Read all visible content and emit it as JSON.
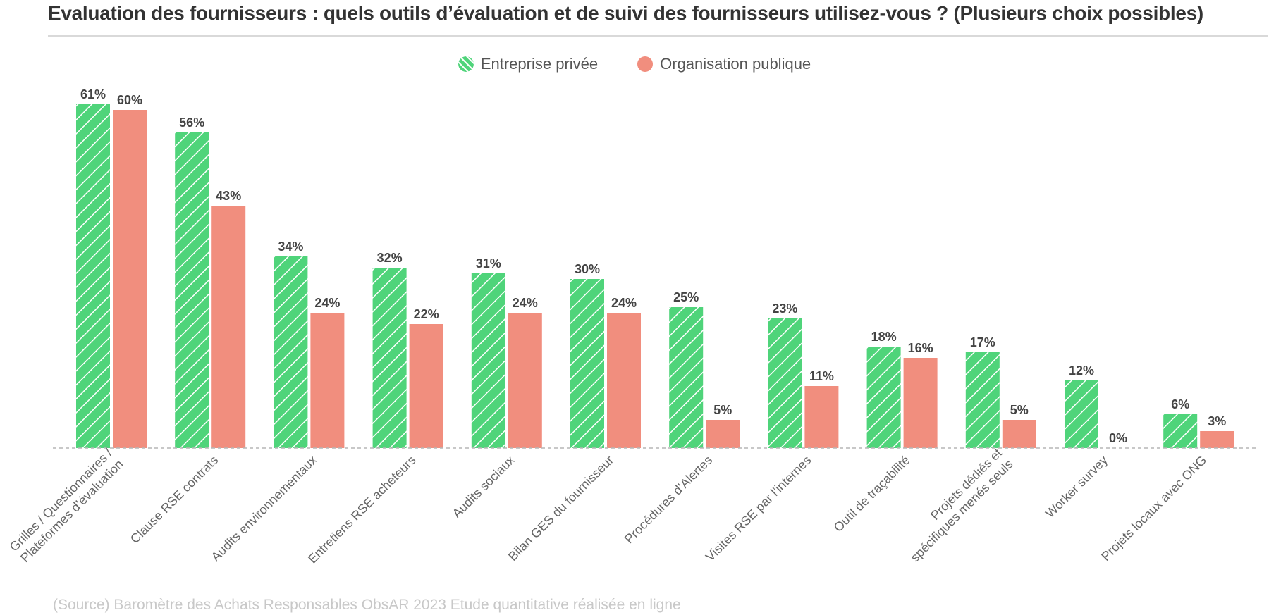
{
  "title": "Evaluation des fournisseurs : quels outils d’évaluation et de suivi des fournisseurs utilisez-vous ? (Plusieurs choix possibles)",
  "source": "(Source) Baromètre des Achats Responsables ObsAR 2023 Etude quantitative réalisée en ligne",
  "colors": {
    "entreprise": "#4fd47a",
    "organisation": "#f18e7e",
    "baseline": "#b5b5b5",
    "label": "#444444",
    "category": "#666666"
  },
  "chart_data": {
    "type": "bar",
    "title": "Evaluation des fournisseurs : quels outils d’évaluation et de suivi des fournisseurs utilisez-vous ? (Plusieurs choix possibles)",
    "xlabel": "",
    "ylabel": "",
    "ylim": [
      0,
      61
    ],
    "grid": false,
    "legend_position": "top-center",
    "categories": [
      [
        "Grilles / Questionnaires /",
        "Plateformes d’évaluation"
      ],
      [
        "Clause RSE contrats"
      ],
      [
        "Audits environnementaux"
      ],
      [
        "Entretiens RSE acheteurs"
      ],
      [
        "Audits sociaux"
      ],
      [
        "Bilan GES du fournisseur"
      ],
      [
        "Procédures d’Alertes"
      ],
      [
        "Visites RSE par l’internes"
      ],
      [
        "Outil de traçabilité"
      ],
      [
        "Projets dédiés et",
        "spécifiques menés seuls"
      ],
      [
        "Worker survey"
      ],
      [
        "Projets locaux avec ONG"
      ]
    ],
    "series": [
      {
        "name": "Entreprise privée",
        "values": [
          61,
          56,
          34,
          32,
          31,
          30,
          25,
          23,
          18,
          17,
          12,
          6
        ],
        "pattern": "hatched"
      },
      {
        "name": "Organisation publique",
        "values": [
          60,
          43,
          24,
          22,
          24,
          24,
          5,
          11,
          16,
          5,
          0,
          3
        ],
        "pattern": "solid"
      }
    ],
    "value_suffix": "%"
  }
}
